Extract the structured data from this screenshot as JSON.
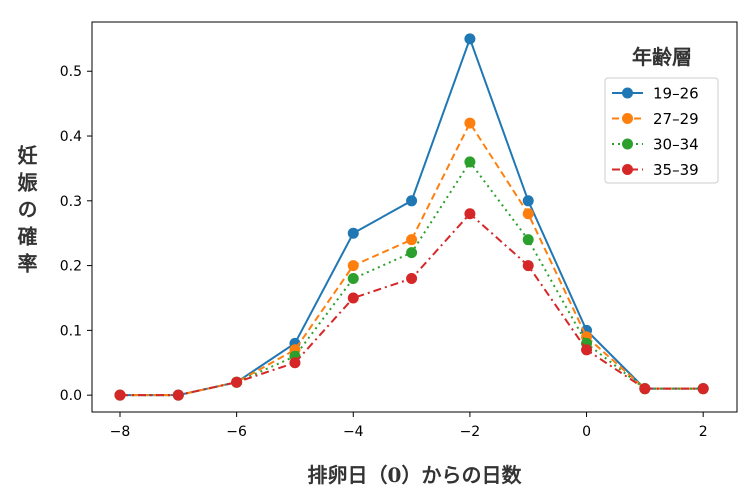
{
  "chart_data": {
    "type": "line",
    "title": "",
    "xlabel": "排卵日（0）からの日数",
    "ylabel": "妊娠の確率",
    "x": [
      -8,
      -7,
      -6,
      -5,
      -4,
      -3,
      -2,
      -1,
      0,
      1,
      2
    ],
    "xlim": [
      -8.48,
      2.58
    ],
    "ylim": [
      -0.026,
      0.576
    ],
    "xticks": [
      -8,
      -6,
      -4,
      -2,
      0,
      2
    ],
    "xtick_labels": [
      "−8",
      "−6",
      "−4",
      "−2",
      "0",
      "2"
    ],
    "yticks": [
      0.0,
      0.1,
      0.2,
      0.3,
      0.4,
      0.5
    ],
    "ytick_labels": [
      "0.0",
      "0.1",
      "0.2",
      "0.3",
      "0.4",
      "0.5"
    ],
    "grid": false,
    "legend": {
      "title": "年齢層",
      "placement": "top-right"
    },
    "series": [
      {
        "name": "19–26",
        "color": "#1f77b4",
        "dash": "solid",
        "values": [
          0,
          0,
          0.02,
          0.08,
          0.25,
          0.3,
          0.55,
          0.3,
          0.1,
          0.01,
          0.01
        ]
      },
      {
        "name": "27–29",
        "color": "#ff7f0e",
        "dash": "dashed",
        "values": [
          0,
          0,
          0.02,
          0.07,
          0.2,
          0.24,
          0.42,
          0.28,
          0.09,
          0.01,
          0.01
        ]
      },
      {
        "name": "30–34",
        "color": "#2ca02c",
        "dash": "dotted",
        "values": [
          0,
          0,
          0.02,
          0.06,
          0.18,
          0.22,
          0.36,
          0.24,
          0.08,
          0.01,
          0.01
        ]
      },
      {
        "name": "35–39",
        "color": "#d62728",
        "dash": "dashdot",
        "values": [
          0,
          0,
          0.02,
          0.05,
          0.15,
          0.18,
          0.28,
          0.2,
          0.07,
          0.01,
          0.01
        ]
      }
    ]
  }
}
